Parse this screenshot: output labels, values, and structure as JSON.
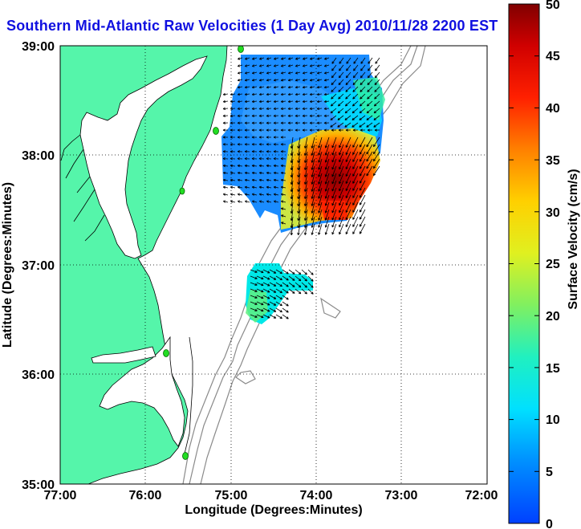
{
  "title": "Southern Mid-Atlantic Raw Velocities (1 Day Avg) 2010/11/28 2200 EST",
  "axes": {
    "xlabel": "Longitude (Degrees:Minutes)",
    "ylabel": "Latitude (Degrees:Minutes)",
    "x_ticks": [
      "77:00",
      "76:00",
      "75:00",
      "74:00",
      "73:00",
      "72:00"
    ],
    "y_ticks": [
      "39:00",
      "38:00",
      "37:00",
      "36:00",
      "35:00"
    ]
  },
  "colorbar": {
    "label": "Surface Velocity (cm/s)",
    "ticks": [
      "50",
      "45",
      "40",
      "35",
      "30",
      "25",
      "20",
      "15",
      "10",
      "5",
      "0"
    ],
    "range": [
      0,
      50
    ]
  },
  "colors": {
    "land": "#55f5aa",
    "title": "#1010e0",
    "bathymetry": "#8a8a8a",
    "grid": "#000000",
    "station": "#22dd22"
  }
}
